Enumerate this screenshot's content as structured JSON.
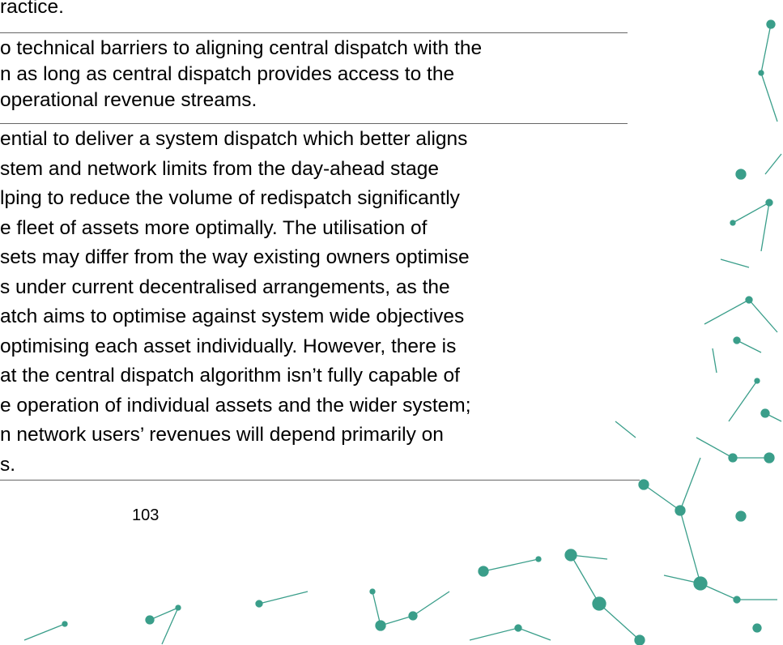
{
  "rows": [
    [
      "ractice."
    ],
    [
      "o technical barriers to aligning central dispatch with the",
      "n as long as central dispatch provides access to the",
      "operational revenue streams."
    ],
    [
      "ential to deliver a system dispatch which better aligns",
      "stem and network limits from the day-ahead stage",
      "lping to reduce the volume of redispatch significantly",
      "e fleet of assets more optimally. The utilisation of",
      "sets may differ from the way existing owners optimise",
      "s under current decentralised arrangements, as the",
      "atch aims to optimise against system wide objectives",
      "optimising each asset individually. However, there is",
      "at the central dispatch algorithm isn’t fully capable of",
      "e operation of individual assets and the wider system;",
      "n network users’ revenues will depend primarily on",
      "s."
    ]
  ],
  "page_number": "103"
}
